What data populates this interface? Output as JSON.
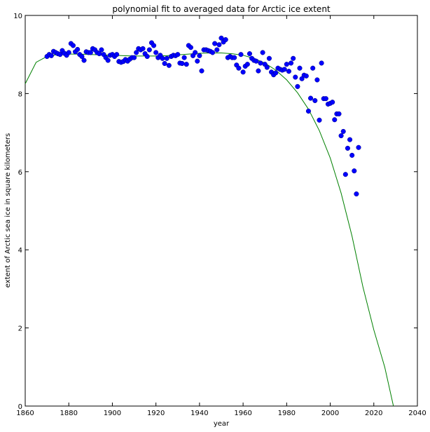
{
  "chart_data": {
    "type": "scatter",
    "title": "polynomial fit to averaged data for Arctic ice extent",
    "xlabel": "year",
    "ylabel": "extent of Arctic sea ice in square kilometers",
    "xlim": [
      1860,
      2040
    ],
    "ylim": [
      0,
      10
    ],
    "x_ticks": [
      1860,
      1880,
      1900,
      1920,
      1940,
      1960,
      1980,
      2000,
      2020,
      2040
    ],
    "y_ticks": [
      0,
      2,
      4,
      6,
      8,
      10
    ],
    "grid": false,
    "legend": "none",
    "colors": {
      "points": "#0000ff",
      "point_edge": "#000080",
      "fit": "#008000"
    },
    "series": [
      {
        "type": "scatter",
        "x": [
          1870,
          1871,
          1872,
          1873,
          1874,
          1875,
          1876,
          1877,
          1878,
          1879,
          1880,
          1881,
          1882,
          1883,
          1884,
          1885,
          1886,
          1887,
          1888,
          1889,
          1890,
          1891,
          1892,
          1893,
          1894,
          1895,
          1896,
          1897,
          1898,
          1899,
          1900,
          1901,
          1902,
          1903,
          1904,
          1905,
          1906,
          1907,
          1908,
          1909,
          1910,
          1911,
          1912,
          1913,
          1914,
          1915,
          1916,
          1917,
          1918,
          1919,
          1920,
          1921,
          1922,
          1923,
          1924,
          1925,
          1926,
          1927,
          1928,
          1929,
          1930,
          1931,
          1932,
          1933,
          1934,
          1935,
          1936,
          1937,
          1938,
          1939,
          1940,
          1941,
          1942,
          1943,
          1944,
          1945,
          1946,
          1947,
          1948,
          1949,
          1950,
          1951,
          1952,
          1953,
          1954,
          1955,
          1956,
          1957,
          1958,
          1959,
          1960,
          1961,
          1962,
          1963,
          1964,
          1965,
          1966,
          1967,
          1968,
          1969,
          1970,
          1971,
          1972,
          1973,
          1974,
          1975,
          1976,
          1977,
          1978,
          1979,
          1980,
          1981,
          1982,
          1983,
          1984,
          1985,
          1986,
          1987,
          1988,
          1989,
          1990,
          1991,
          1992,
          1993,
          1994,
          1995,
          1996,
          1997,
          1998,
          1999,
          2000,
          2001,
          2002,
          2003,
          2004,
          2005,
          2006,
          2007,
          2008,
          2009,
          2010,
          2011,
          2012,
          2013
        ],
        "y": [
          8.95,
          9.0,
          8.97,
          9.08,
          9.05,
          9.02,
          9.0,
          9.1,
          9.03,
          8.98,
          9.05,
          9.28,
          9.23,
          9.07,
          9.13,
          9.0,
          8.95,
          8.85,
          9.07,
          9.05,
          9.05,
          9.15,
          9.12,
          9.05,
          9.02,
          9.12,
          9.0,
          8.92,
          8.85,
          8.98,
          9.0,
          8.95,
          9.0,
          8.82,
          8.8,
          8.82,
          8.87,
          8.83,
          8.88,
          8.92,
          8.92,
          9.05,
          9.15,
          9.12,
          9.15,
          9.02,
          8.95,
          9.12,
          9.3,
          9.23,
          9.05,
          8.92,
          8.98,
          8.9,
          8.77,
          8.9,
          8.72,
          8.95,
          8.98,
          8.97,
          9.0,
          8.78,
          8.77,
          8.92,
          8.75,
          9.23,
          9.18,
          8.97,
          9.05,
          8.83,
          8.97,
          8.58,
          9.12,
          9.12,
          9.1,
          9.08,
          9.05,
          9.28,
          9.12,
          9.25,
          9.42,
          9.32,
          9.38,
          8.92,
          8.95,
          8.92,
          8.92,
          8.73,
          8.65,
          9.0,
          8.55,
          8.7,
          8.75,
          9.02,
          8.9,
          8.85,
          8.83,
          8.58,
          8.78,
          9.05,
          8.75,
          8.67,
          8.9,
          8.55,
          8.48,
          8.53,
          8.65,
          8.62,
          8.6,
          8.62,
          8.75,
          8.57,
          8.78,
          8.9,
          8.42,
          8.18,
          8.65,
          8.38,
          8.47,
          8.45,
          7.55,
          7.88,
          8.65,
          7.82,
          8.35,
          7.32,
          8.78,
          7.87,
          7.87,
          7.73,
          7.75,
          7.78,
          7.33,
          7.48,
          7.48,
          6.92,
          7.03,
          5.93,
          6.6,
          6.82,
          6.42,
          6.02,
          5.43,
          6.62
        ]
      },
      {
        "type": "line",
        "x": [
          1860,
          1865,
          1870,
          1875,
          1880,
          1885,
          1890,
          1895,
          1900,
          1905,
          1910,
          1915,
          1920,
          1925,
          1930,
          1935,
          1940,
          1945,
          1950,
          1955,
          1960,
          1965,
          1970,
          1975,
          1980,
          1985,
          1990,
          1995,
          2000,
          2005,
          2010,
          2015,
          2020,
          2025,
          2029
        ],
        "y": [
          8.25,
          8.8,
          8.95,
          9.0,
          9.01,
          9.01,
          9.0,
          8.99,
          8.98,
          8.97,
          8.96,
          8.96,
          8.96,
          8.97,
          8.99,
          9.01,
          9.03,
          9.04,
          9.04,
          9.02,
          8.98,
          8.9,
          8.78,
          8.6,
          8.35,
          8.02,
          7.6,
          7.05,
          6.35,
          5.45,
          4.35,
          3.05,
          1.95,
          1.0,
          0.0
        ]
      }
    ]
  }
}
